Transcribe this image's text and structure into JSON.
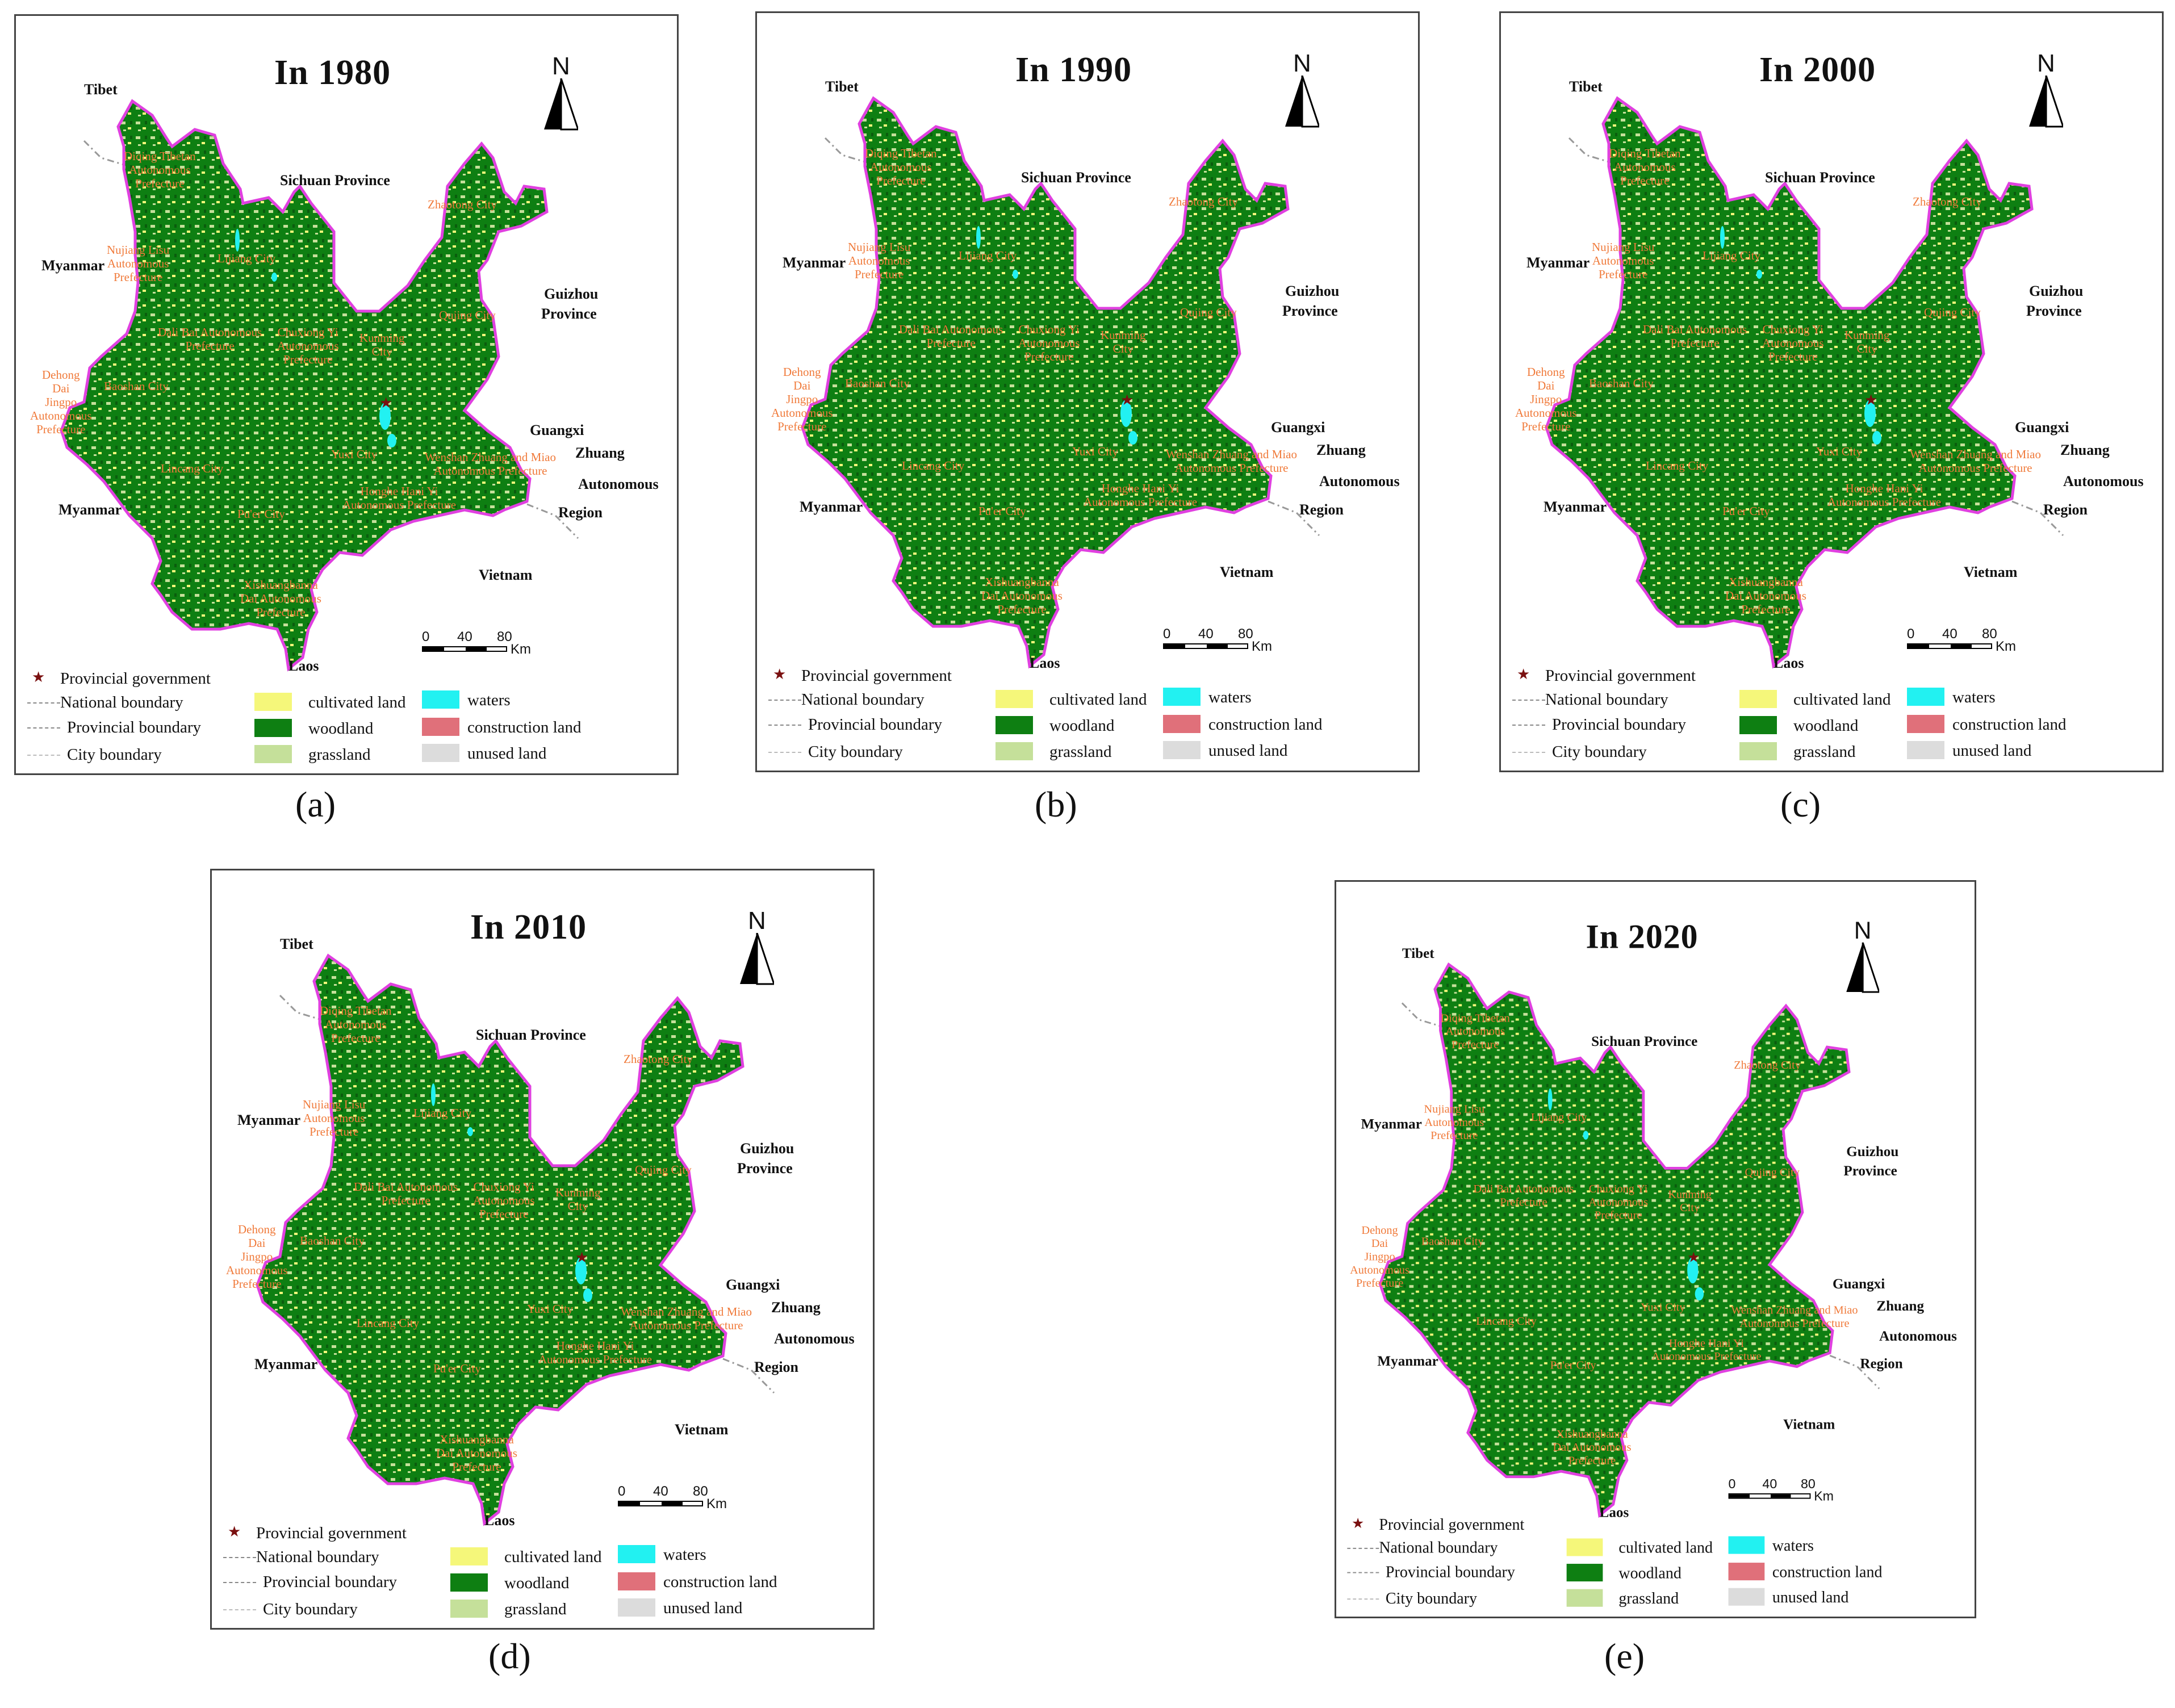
{
  "colors": {
    "cultivated_land": "#f5f77a",
    "woodland": "#0e7f12",
    "grassland": "#c5e09a",
    "waters": "#22f1f1",
    "construction_land": "#e0707a",
    "unused_land": "#dcdcdc",
    "boundary": "#e040e0",
    "city_label": "#f07a3a",
    "capital_star": "#7a1010"
  },
  "north_letter": "N",
  "scale": {
    "ticks": [
      "0",
      "40",
      "80"
    ],
    "unit": "Km"
  },
  "neighbors": {
    "tibet": "Tibet",
    "sichuan": "Sichuan Province",
    "myanmar_north": "Myanmar",
    "guizhou_1": "Guizhou",
    "guizhou_2": "Province",
    "guangxi_1": "Guangxi",
    "guangxi_2": "Zhuang",
    "guangxi_3": "Autonomous",
    "guangxi_4": "Region",
    "myanmar_south": "Myanmar",
    "vietnam": "Vietnam",
    "laos": "Laos"
  },
  "cities": {
    "diqing": "Diqing Tibetan\nAutonomous\nPrefecture",
    "nujiang": "Nujiang Lisu\nAutonomous\nPrefecture",
    "lijiang": "Lijiang City",
    "zhaotong": "Zhaotong City",
    "dali": "Dali Bai Autonomous\nPrefecture",
    "chuxiong": "Chuxiong Yi\nAutonomous\nPrefecture",
    "kunming": "Kunming\nCity",
    "qujing": "Qujing City",
    "dehong": "Dehong\nDai\nJingpo\nAutonomous\nPrefecture",
    "baoshan": "Baoshan City",
    "lincang": "Lincang City",
    "yuxi": "Yuxi City",
    "wenshan": "Wenshan Zhuang and Miao\nAutonomous Prefecture",
    "honghe": "Honghe Hani Yi\nAutonomous Prefecture",
    "puer": "Pu'er City",
    "xishuangbanna": "Xishuangbanna\nDai Autonomous\nPrefecture"
  },
  "legend": {
    "provincial_government": "Provincial government",
    "national_boundary": "National boundary",
    "provincial_boundary": "Provincial boundary",
    "city_boundary": "City boundary",
    "cultivated_land": "cultivated land",
    "woodland": "woodland",
    "grassland": "grassland",
    "waters": "waters",
    "construction_land": "construction land",
    "unused_land": "unused land"
  },
  "panels": [
    {
      "id": "a",
      "title": "In 1980",
      "caption_open": "(",
      "caption_letter": "a",
      "caption_close": ")"
    },
    {
      "id": "b",
      "title": "In 1990",
      "caption_open": "(",
      "caption_letter": "b",
      "caption_close": ")"
    },
    {
      "id": "c",
      "title": "In 2000",
      "caption_open": "(",
      "caption_letter": "c",
      "caption_close": ")"
    },
    {
      "id": "d",
      "title": "In 2010",
      "caption_open": "(",
      "caption_letter": "d",
      "caption_close": ")"
    },
    {
      "id": "e",
      "title": "In 2020",
      "caption_open": "(",
      "caption_letter": "e",
      "caption_close": ")"
    }
  ]
}
